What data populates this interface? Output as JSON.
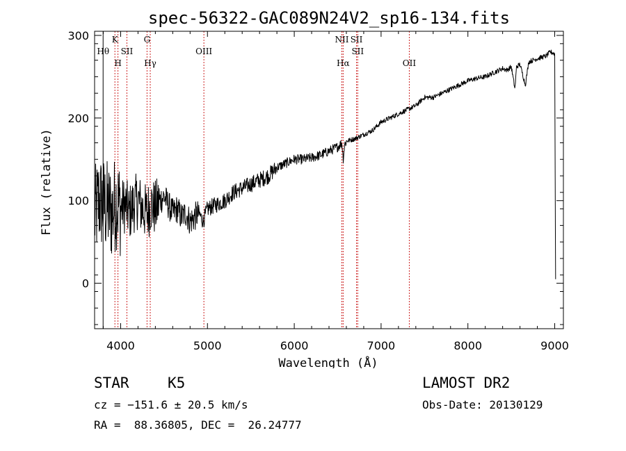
{
  "chart_data": {
    "type": "line",
    "title": "spec-56322-GAC089N24V2_sp16-134.fits",
    "xlabel": "Wavelength (Å)",
    "ylabel": "Flux (relative)",
    "xlim": [
      3700,
      9100
    ],
    "ylim": [
      -55,
      305
    ],
    "xticks": [
      4000,
      5000,
      6000,
      7000,
      8000,
      9000
    ],
    "yticks": [
      0,
      100,
      200,
      300
    ],
    "grid": false,
    "series": [
      {
        "x": [
          3700,
          3750,
          3800,
          3850,
          3900,
          3950,
          4000,
          4050,
          4100,
          4150,
          4200,
          4250,
          4300,
          4350,
          4400,
          4450,
          4500,
          4550,
          4600,
          4650,
          4700,
          4750,
          4800,
          4850,
          4900,
          4950,
          5000,
          5100,
          5200,
          5300,
          5400,
          5500,
          5600,
          5700,
          5800,
          5900,
          6000,
          6100,
          6200,
          6300,
          6400,
          6500,
          6550,
          6563,
          6580,
          6600,
          6700,
          6800,
          6900,
          7000,
          7100,
          7200,
          7300,
          7400,
          7500,
          7600,
          7700,
          7800,
          7900,
          8000,
          8100,
          8200,
          8300,
          8400,
          8450,
          8500,
          8542,
          8560,
          8600,
          8662,
          8700,
          8800,
          8900,
          8950,
          9000,
          9010
        ],
        "y": [
          80,
          100,
          95,
          90,
          85,
          100,
          90,
          95,
          85,
          95,
          100,
          90,
          85,
          95,
          90,
          100,
          105,
          95,
          85,
          90,
          80,
          85,
          75,
          80,
          85,
          75,
          90,
          95,
          100,
          110,
          115,
          120,
          125,
          130,
          140,
          145,
          150,
          150,
          152,
          155,
          160,
          165,
          170,
          150,
          168,
          172,
          175,
          180,
          185,
          195,
          200,
          205,
          210,
          215,
          225,
          225,
          230,
          235,
          240,
          245,
          248,
          250,
          255,
          260,
          258,
          262,
          235,
          262,
          265,
          240,
          268,
          272,
          275,
          280,
          278,
          5
        ]
      }
    ],
    "line_annotations": [
      {
        "x": 3798,
        "label": "Hθ",
        "row": 2,
        "dashed": false
      },
      {
        "x": 3934,
        "label": "K",
        "row": 1,
        "dashed": true
      },
      {
        "x": 3969,
        "label": "H",
        "row": 3,
        "dashed": true
      },
      {
        "x": 4072,
        "label": "SII",
        "row": 2,
        "dashed": true
      },
      {
        "x": 4304,
        "label": "G",
        "row": 1,
        "dashed": true
      },
      {
        "x": 4341,
        "label": "Hγ",
        "row": 3,
        "dashed": true
      },
      {
        "x": 4959,
        "label": "OIII",
        "row": 2,
        "dashed": true
      },
      {
        "x": 6548,
        "label": "NII",
        "row": 1,
        "dashed": true
      },
      {
        "x": 6563,
        "label": "Hα",
        "row": 3,
        "dashed": true
      },
      {
        "x": 6717,
        "label": "SII",
        "row": 1,
        "dashed": true
      },
      {
        "x": 6731,
        "label": "SII",
        "row": 2,
        "dashed": true
      },
      {
        "x": 7325,
        "label": "OII",
        "row": 3,
        "dashed": true
      }
    ]
  },
  "info": {
    "object_class": "STAR",
    "subclass": "K5",
    "survey": "LAMOST DR2",
    "redshift": "cz = −151.6 ± 20.5 km/s",
    "obs_date": "Obs-Date: 20130129",
    "coordinates": "RA =  88.36805, DEC =  26.24777"
  },
  "colors": {
    "spectrum": "#000000",
    "line_marker": "#cc2222",
    "axis": "#000000"
  }
}
